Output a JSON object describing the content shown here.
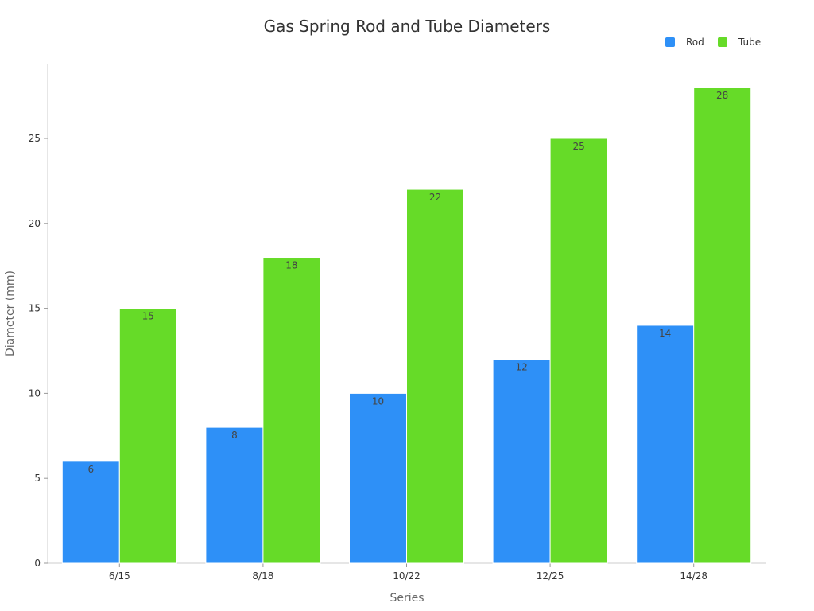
{
  "chart_data": {
    "type": "bar",
    "title": "Gas Spring Rod and Tube Diameters",
    "xlabel": "Series",
    "ylabel": "Diameter (mm)",
    "categories": [
      "6/15",
      "8/18",
      "10/22",
      "12/25",
      "14/28"
    ],
    "series": [
      {
        "name": "Rod",
        "values": [
          6,
          8,
          10,
          12,
          14
        ],
        "color": "#2E90F7"
      },
      {
        "name": "Tube",
        "values": [
          15,
          18,
          22,
          25,
          28
        ],
        "color": "#66DB28"
      }
    ],
    "ylim": [
      0,
      29.4
    ],
    "yticks": [
      0,
      5,
      10,
      15,
      20,
      25
    ],
    "grid": false,
    "legend_position": "top-right",
    "data_labels": true
  }
}
